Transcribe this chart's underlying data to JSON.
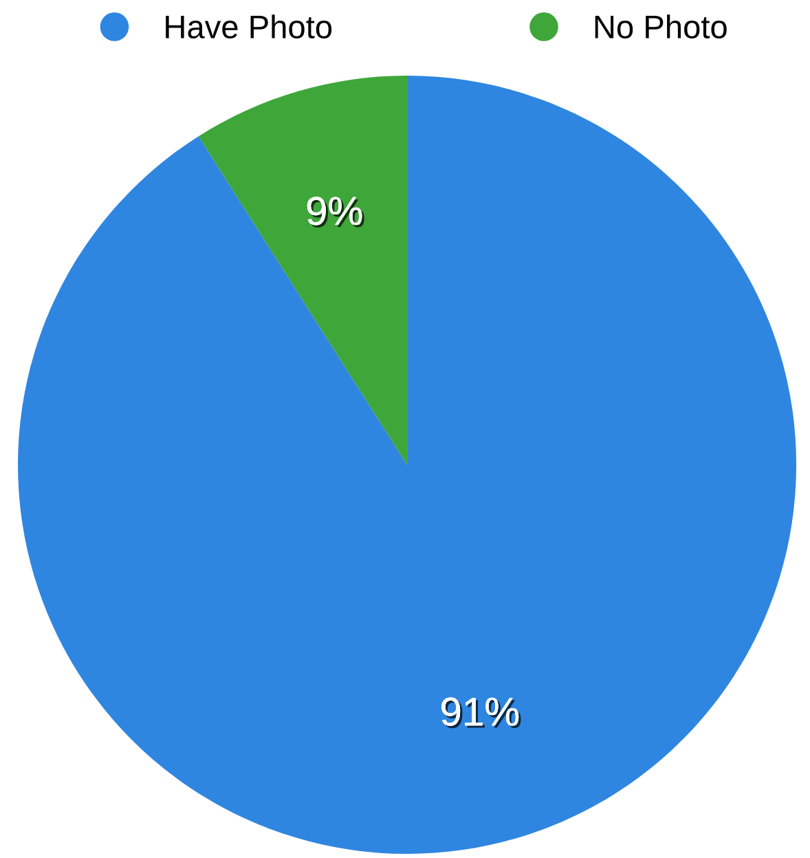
{
  "chart_data": {
    "type": "pie",
    "categories": [
      "Have Photo",
      "No Photo"
    ],
    "values": [
      91,
      9
    ],
    "colors": [
      "#2f86e0",
      "#3fa63a"
    ],
    "value_labels": [
      "91%",
      "9%"
    ],
    "legend": "top"
  }
}
